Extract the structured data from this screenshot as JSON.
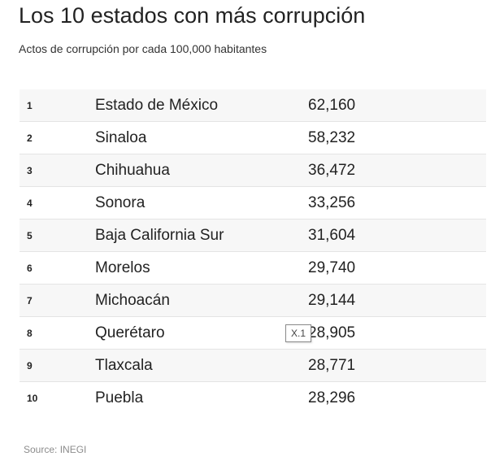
{
  "title": "Los 10 estados con más corrupción",
  "subtitle": "Actos de corrupción por cada 100,000 habitantes",
  "source": "Source: INEGI",
  "zoom_badge": "X.1",
  "colors": {
    "row_shade": "#f7f7f7",
    "divider": "#e4e4e4",
    "text": "#222222",
    "source_text": "#8c8c8c"
  },
  "chart_data": {
    "type": "table",
    "title": "Los 10 estados con más corrupción",
    "subtitle": "Actos de corrupción por cada 100,000 habitantes",
    "rows": [
      {
        "rank": "1",
        "state": "Estado de México",
        "value": "62,160"
      },
      {
        "rank": "2",
        "state": "Sinaloa",
        "value": "58,232"
      },
      {
        "rank": "3",
        "state": "Chihuahua",
        "value": "36,472"
      },
      {
        "rank": "4",
        "state": "Sonora",
        "value": "33,256"
      },
      {
        "rank": "5",
        "state": "Baja California Sur",
        "value": "31,604"
      },
      {
        "rank": "6",
        "state": "Morelos",
        "value": "29,740"
      },
      {
        "rank": "7",
        "state": "Michoacán",
        "value": "29,144"
      },
      {
        "rank": "8",
        "state": "Querétaro",
        "value": "28,905"
      },
      {
        "rank": "9",
        "state": "Tlaxcala",
        "value": "28,771"
      },
      {
        "rank": "10",
        "state": "Puebla",
        "value": "28,296"
      }
    ]
  }
}
